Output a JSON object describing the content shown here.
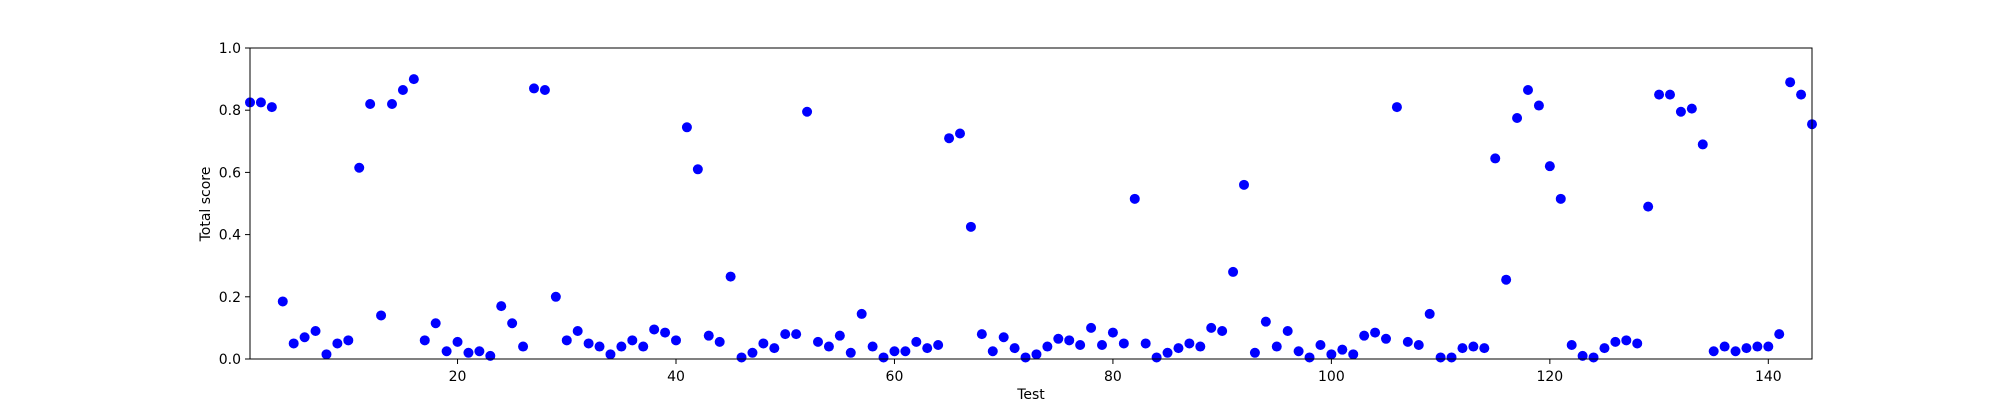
{
  "chart_data": {
    "type": "scatter",
    "title": "",
    "xlabel": "Test",
    "ylabel": "Total score",
    "xlim": [
      1,
      144
    ],
    "ylim": [
      0,
      1.0
    ],
    "xticks": [
      20,
      40,
      60,
      80,
      100,
      120,
      140
    ],
    "yticks": [
      0.0,
      0.2,
      0.4,
      0.6,
      0.8,
      1.0
    ],
    "xtick_labels": [
      "20",
      "40",
      "60",
      "80",
      "100",
      "120",
      "140"
    ],
    "ytick_labels": [
      "0.0",
      "0.2",
      "0.4",
      "0.6",
      "0.8",
      "1.0"
    ],
    "grid": false,
    "marker_color": "#0000ff",
    "series": [
      {
        "x": [
          1,
          2,
          3,
          4,
          5,
          6,
          7,
          8,
          9,
          10,
          11,
          12,
          13,
          14,
          15,
          16,
          17,
          18,
          19,
          20,
          21,
          22,
          23,
          24,
          25,
          26,
          27,
          28,
          29,
          30,
          31,
          32,
          33,
          34,
          35,
          36,
          37,
          38,
          39,
          40,
          41,
          42,
          43,
          44,
          45,
          46,
          47,
          48,
          49,
          50,
          51,
          52,
          53,
          54,
          55,
          56,
          57,
          58,
          59,
          60,
          61,
          62,
          63,
          64,
          65,
          66,
          67,
          68,
          69,
          70,
          71,
          72,
          73,
          74,
          75,
          76,
          77,
          78,
          79,
          80,
          81,
          82,
          83,
          84,
          85,
          86,
          87,
          88,
          89,
          90,
          91,
          92,
          93,
          94,
          95,
          96,
          97,
          98,
          99,
          100,
          101,
          102,
          103,
          104,
          105,
          106,
          107,
          108,
          109,
          110,
          111,
          112,
          113,
          114,
          115,
          116,
          117,
          118,
          119,
          120,
          121,
          122,
          123,
          124,
          125,
          126,
          127,
          128,
          129,
          130,
          131,
          132,
          133,
          134,
          135,
          136,
          137,
          138,
          139,
          140,
          141,
          142,
          143,
          144
        ],
        "y": [
          0.825,
          0.825,
          0.81,
          0.185,
          0.05,
          0.07,
          0.09,
          0.015,
          0.05,
          0.06,
          0.615,
          0.82,
          0.14,
          0.82,
          0.865,
          0.9,
          0.06,
          0.115,
          0.025,
          0.055,
          0.02,
          0.025,
          0.01,
          0.17,
          0.115,
          0.04,
          0.87,
          0.865,
          0.2,
          0.06,
          0.09,
          0.05,
          0.04,
          0.015,
          0.04,
          0.06,
          0.04,
          0.095,
          0.085,
          0.06,
          0.745,
          0.61,
          0.075,
          0.055,
          0.265,
          0.005,
          0.02,
          0.05,
          0.035,
          0.08,
          0.08,
          0.795,
          0.055,
          0.04,
          0.075,
          0.02,
          0.145,
          0.04,
          0.005,
          0.025,
          0.025,
          0.055,
          0.035,
          0.045,
          0.71,
          0.725,
          0.425,
          0.08,
          0.025,
          0.07,
          0.035,
          0.005,
          0.015,
          0.04,
          0.065,
          0.06,
          0.045,
          0.1,
          0.045,
          0.085,
          0.05,
          0.515,
          0.05,
          0.005,
          0.02,
          0.035,
          0.05,
          0.04,
          0.1,
          0.09,
          0.28,
          0.56,
          0.02,
          0.12,
          0.04,
          0.09,
          0.025,
          0.005,
          0.045,
          0.015,
          0.03,
          0.015,
          0.075,
          0.085,
          0.065,
          0.81,
          0.055,
          0.045,
          0.145,
          0.005,
          0.005,
          0.035,
          0.04,
          0.035,
          0.645,
          0.255,
          0.775,
          0.865,
          0.815,
          0.62,
          0.515,
          0.045,
          0.01,
          0.005,
          0.035,
          0.055,
          0.06,
          0.05,
          0.49,
          0.85,
          0.85,
          0.795,
          0.805,
          0.69,
          0.025,
          0.04,
          0.025,
          0.035,
          0.04,
          0.04,
          0.08,
          0.89,
          0.85,
          0.755
        ]
      }
    ]
  }
}
